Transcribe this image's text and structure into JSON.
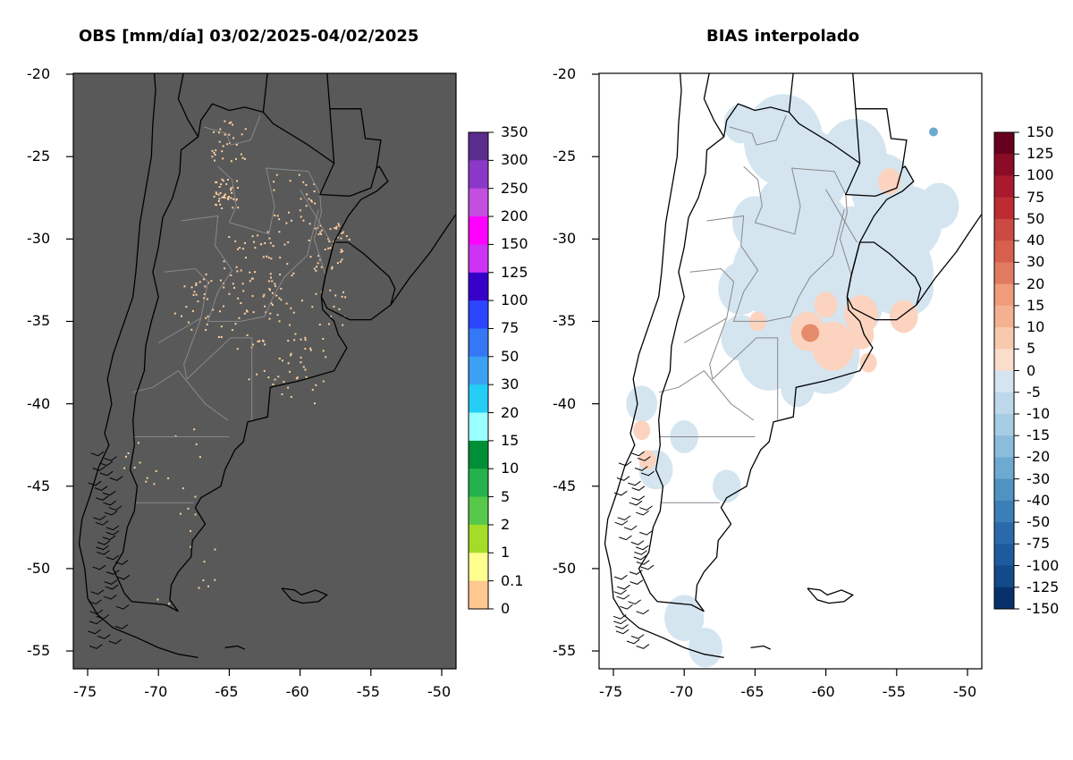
{
  "titles": {
    "left": "OBS [mm/día] 03/02/2025-04/02/2025",
    "right": "BIAS interpolado"
  },
  "axes": {
    "x_ticks": [
      "-75",
      "-70",
      "-65",
      "-60",
      "-55",
      "-50"
    ],
    "y_ticks": [
      "-20",
      "-25",
      "-30",
      "-35",
      "-40",
      "-45",
      "-50",
      "-55"
    ],
    "lon_range": [
      -76,
      -49
    ],
    "lat_range": [
      -56.2,
      -19.8
    ]
  },
  "colorbars": {
    "obs": {
      "labels": [
        "350",
        "300",
        "250",
        "200",
        "150",
        "125",
        "100",
        "75",
        "50",
        "30",
        "20",
        "15",
        "10",
        "5",
        "2",
        "1",
        "0.1",
        "0"
      ],
      "colors": [
        "#5b2d8e",
        "#8b38c9",
        "#c44ee0",
        "#ff00ff",
        "#ce33f5",
        "#3600c8",
        "#2c46ff",
        "#3478f5",
        "#3ba1f5",
        "#24cdf5",
        "#99ffff",
        "#008f36",
        "#23b24b",
        "#57c94a",
        "#a5dc2a",
        "#ffff8f",
        "#ffc88f"
      ]
    },
    "bias": {
      "labels": [
        "150",
        "125",
        "100",
        "75",
        "50",
        "40",
        "30",
        "20",
        "15",
        "10",
        "5",
        "0",
        "-5",
        "-10",
        "-15",
        "-20",
        "-30",
        "-40",
        "-50",
        "-75",
        "-100",
        "-125",
        "-150"
      ],
      "colors": [
        "#67001f",
        "#8a0c27",
        "#a91a2e",
        "#bd2c33",
        "#cb4a42",
        "#d6604d",
        "#e07b62",
        "#f09b7a",
        "#f4b191",
        "#f9c9ae",
        "#fbddcb",
        "#d4e5f0",
        "#bcd8ea",
        "#a6cde4",
        "#8cbcdb",
        "#6ea9d1",
        "#4f93c3",
        "#3a7fb8",
        "#2a6aab",
        "#1d5b9e",
        "#124a8a",
        "#08306b"
      ]
    }
  },
  "colors": {
    "panel_bg": "#595959",
    "station_dot": "#ffd0a0",
    "border": "#000000",
    "province_line": "#888888",
    "bias_light_blue": "#d4e5f0",
    "bias_salmon": "#fbd3bf"
  }
}
